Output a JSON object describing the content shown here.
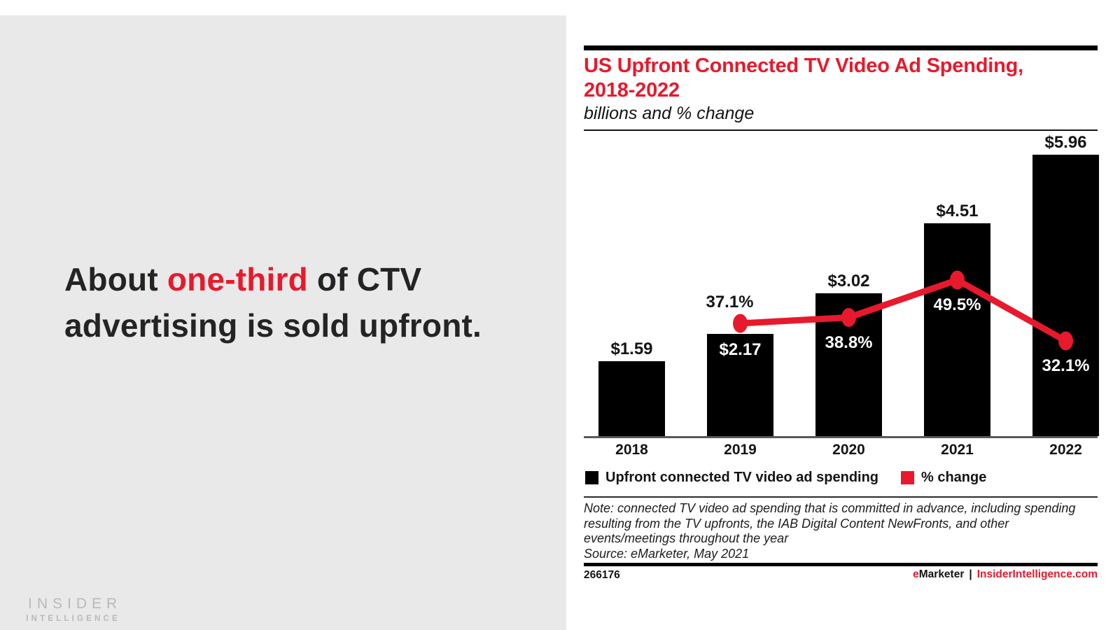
{
  "accent_red": "#e8192c",
  "left_panel": {
    "background": "#e9e9e9",
    "headline": {
      "prefix": "About ",
      "highlight": "one-third",
      "suffix": " of CTV advertising is sold upfront."
    },
    "logo": {
      "line1": "INSIDER",
      "line2": "INTELLIGENCE"
    }
  },
  "right_panel": {
    "title_line1": "US Upfront Connected TV Video Ad Spending,",
    "title_line2": "2018-2022",
    "subtitle": "billions and % change",
    "legend": [
      {
        "label": "Upfront connected TV video ad spending",
        "color": "#000000"
      },
      {
        "label": "% change",
        "color": "#e8192c"
      }
    ],
    "note": "Note: connected TV video ad spending that is committed in advance, including spending resulting from the TV upfronts, the IAB Digital Content NewFronts, and other events/meetings throughout the year",
    "source": "Source: eMarketer, May 2021",
    "footer": {
      "chart_id": "266176",
      "brand_e": "e",
      "brand_marketer": "Marketer",
      "separator": "|",
      "site": "InsiderIntelligence.com"
    }
  },
  "chart_data": {
    "type": "bar",
    "title": "US Upfront Connected TV Video Ad Spending, 2018-2022",
    "subtitle": "billions and % change",
    "categories": [
      "2018",
      "2019",
      "2020",
      "2021",
      "2022"
    ],
    "series": [
      {
        "name": "Upfront connected TV video ad spending",
        "type": "bar",
        "unit": "$ billions",
        "color": "#000000",
        "values": [
          1.59,
          2.17,
          3.02,
          4.51,
          5.96
        ],
        "labels": [
          "$1.59",
          "$2.17",
          "$3.02",
          "$4.51",
          "$5.96"
        ],
        "label_inside": [
          false,
          true,
          false,
          false,
          false
        ]
      },
      {
        "name": "% change",
        "type": "line",
        "unit": "%",
        "color": "#e8192c",
        "values": [
          null,
          37.1,
          38.8,
          49.5,
          32.1
        ],
        "labels": [
          null,
          "37.1%",
          "38.8%",
          "49.5%",
          "32.1%"
        ],
        "label_above_point": [
          null,
          true,
          false,
          false,
          false
        ]
      }
    ],
    "legend_position": "bottom",
    "grid": false,
    "y_axis_shown": false
  }
}
